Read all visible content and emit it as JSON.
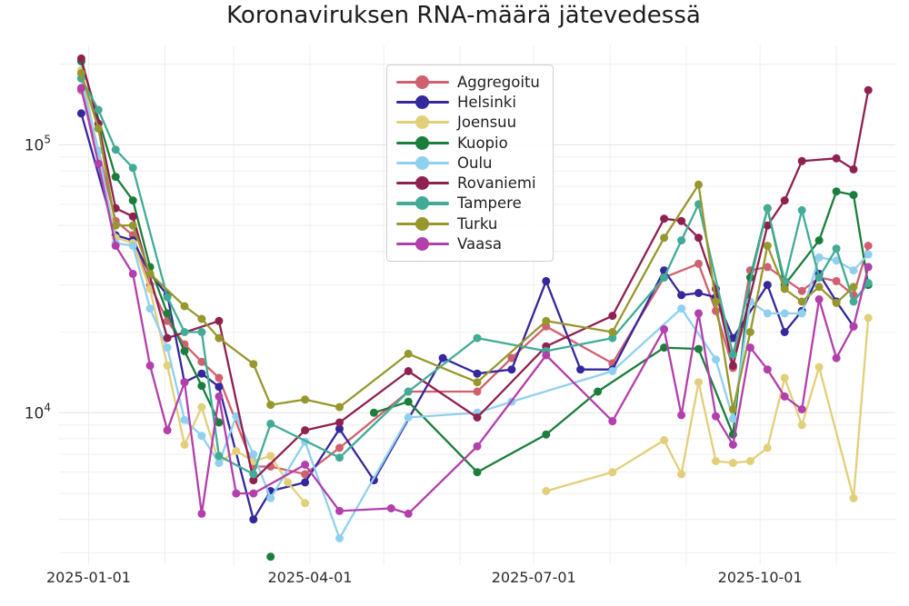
{
  "title": "Koronaviruksen RNA-määrä jätevedessä",
  "axes": {
    "x_ticks": [
      {
        "date": "2025-01-01",
        "label": "2025-01-01"
      },
      {
        "date": "2025-04-01",
        "label": "2025-04-01"
      },
      {
        "date": "2025-07-01",
        "label": "2025-07-01"
      },
      {
        "date": "2025-10-01",
        "label": "2025-10-01"
      }
    ],
    "y_ticks": [
      {
        "value": 10000,
        "base": "10",
        "exp": "4"
      },
      {
        "value": 100000,
        "base": "10",
        "exp": "5"
      }
    ],
    "x_range": [
      "2024-12-20",
      "2025-11-25"
    ],
    "y_range": [
      2700,
      235000
    ],
    "y_scale": "log",
    "grid_minor_color": "#f1eeef",
    "grid_major_color": "#e7e4e5",
    "tick_label_color": "#2b2b2b"
  },
  "legend": {
    "position": "upper-left-of-center"
  },
  "chart_data": {
    "type": "line",
    "title": "Koronaviruksen RNA-määrä jätevedessä",
    "xlabel": "",
    "ylabel": "",
    "y_scale": "log",
    "marker": "circle",
    "series": [
      {
        "name": "Aggregoitu",
        "color": "#d0606f",
        "points": [
          [
            "2024-12-29",
            160000
          ],
          [
            "2025-01-05",
            95000
          ],
          [
            "2025-01-12",
            52000
          ],
          [
            "2025-01-19",
            46000
          ],
          [
            "2025-01-26",
            30000
          ],
          [
            "2025-02-02",
            22000
          ],
          [
            "2025-02-09",
            18000
          ],
          [
            "2025-02-16",
            15500
          ],
          [
            "2025-02-23",
            13500
          ],
          [
            "2025-03-09",
            6300
          ],
          [
            "2025-03-16",
            6300
          ],
          [
            "2025-03-30",
            5900
          ],
          [
            "2025-04-13",
            7400
          ],
          [
            "2025-05-11",
            12000
          ],
          [
            "2025-06-08",
            12000
          ],
          [
            "2025-06-22",
            16000
          ],
          [
            "2025-07-06",
            21000
          ],
          [
            "2025-08-02",
            15300
          ],
          [
            "2025-08-23",
            32000
          ],
          [
            "2025-09-06",
            36000
          ],
          [
            "2025-09-13",
            24000
          ],
          [
            "2025-09-20",
            14700
          ],
          [
            "2025-09-27",
            34000
          ],
          [
            "2025-10-04",
            35000
          ],
          [
            "2025-10-18",
            28500
          ],
          [
            "2025-10-25",
            32000
          ],
          [
            "2025-11-01",
            31000
          ],
          [
            "2025-11-08",
            27500
          ],
          [
            "2025-11-14",
            42000
          ]
        ]
      },
      {
        "name": "Helsinki",
        "color": "#34289c",
        "points": [
          [
            "2024-12-29",
            131000
          ],
          [
            "2025-01-12",
            46000
          ],
          [
            "2025-01-19",
            44000
          ],
          [
            "2025-01-26",
            33000
          ],
          [
            "2025-02-02",
            27500
          ],
          [
            "2025-02-09",
            13000
          ],
          [
            "2025-02-16",
            14000
          ],
          [
            "2025-02-23",
            12500
          ],
          [
            "2025-03-09",
            4000
          ],
          [
            "2025-03-16",
            5100
          ],
          [
            "2025-03-30",
            5500
          ],
          [
            "2025-04-13",
            8700
          ],
          [
            "2025-04-27",
            5600
          ],
          [
            "2025-05-25",
            16000
          ],
          [
            "2025-06-08",
            14000
          ],
          [
            "2025-06-22",
            14500
          ],
          [
            "2025-07-06",
            31000
          ],
          [
            "2025-07-20",
            14500
          ],
          [
            "2025-08-02",
            14500
          ],
          [
            "2025-08-23",
            34000
          ],
          [
            "2025-08-30",
            27500
          ],
          [
            "2025-09-06",
            28000
          ],
          [
            "2025-09-13",
            27000
          ],
          [
            "2025-09-20",
            19000
          ],
          [
            "2025-10-04",
            30000
          ],
          [
            "2025-10-11",
            20000
          ],
          [
            "2025-10-18",
            24000
          ],
          [
            "2025-10-25",
            33000
          ],
          [
            "2025-11-01",
            26000
          ],
          [
            "2025-11-08",
            21000
          ]
        ]
      },
      {
        "name": "Joensuu",
        "color": "#e2cf7a",
        "points": [
          [
            "2024-12-29",
            190000
          ],
          [
            "2025-01-12",
            45000
          ],
          [
            "2025-01-19",
            43000
          ],
          [
            "2025-01-26",
            29000
          ],
          [
            "2025-02-02",
            15000
          ],
          [
            "2025-02-09",
            7600
          ],
          [
            "2025-02-16",
            10500
          ],
          [
            "2025-02-23",
            6500
          ],
          [
            "2025-03-02",
            7200
          ],
          [
            "2025-03-09",
            6600
          ],
          [
            "2025-03-16",
            6900
          ],
          [
            "2025-03-23",
            5500
          ],
          [
            "2025-03-30",
            4600
          ],
          [
            "2025-04-06",
            null
          ],
          [
            "2025-07-06",
            5100
          ],
          [
            "2025-08-02",
            6000
          ],
          [
            "2025-08-23",
            7900
          ],
          [
            "2025-08-30",
            5900
          ],
          [
            "2025-09-06",
            13000
          ],
          [
            "2025-09-13",
            6600
          ],
          [
            "2025-09-20",
            6500
          ],
          [
            "2025-09-27",
            6600
          ],
          [
            "2025-10-04",
            7400
          ],
          [
            "2025-10-11",
            13500
          ],
          [
            "2025-10-18",
            9000
          ],
          [
            "2025-10-25",
            14800
          ],
          [
            "2025-11-08",
            4800
          ],
          [
            "2025-11-14",
            22600
          ]
        ]
      },
      {
        "name": "Kuopio",
        "color": "#1b7e3c",
        "points": [
          [
            "2024-12-29",
            205000
          ],
          [
            "2025-01-12",
            76000
          ],
          [
            "2025-01-19",
            62000
          ],
          [
            "2025-01-26",
            35000
          ],
          [
            "2025-02-02",
            23500
          ],
          [
            "2025-02-09",
            17000
          ],
          [
            "2025-02-16",
            12600
          ],
          [
            "2025-02-23",
            9200
          ],
          [
            "2025-03-02",
            null
          ],
          [
            "2025-03-16",
            2900
          ],
          [
            "2025-03-23",
            null
          ],
          [
            "2025-04-27",
            10000
          ],
          [
            "2025-05-11",
            11000
          ],
          [
            "2025-06-08",
            6000
          ],
          [
            "2025-07-06",
            8300
          ],
          [
            "2025-07-27",
            12000
          ],
          [
            "2025-08-23",
            17500
          ],
          [
            "2025-09-06",
            17300
          ],
          [
            "2025-09-20",
            8300
          ],
          [
            "2025-09-27",
            32000
          ],
          [
            "2025-10-04",
            58000
          ],
          [
            "2025-10-11",
            30000
          ],
          [
            "2025-10-25",
            44000
          ],
          [
            "2025-11-01",
            67000
          ],
          [
            "2025-11-08",
            65000
          ],
          [
            "2025-11-14",
            30000
          ]
        ]
      },
      {
        "name": "Oulu",
        "color": "#8fd0f0",
        "points": [
          [
            "2024-12-29",
            177000
          ],
          [
            "2025-01-05",
            95000
          ],
          [
            "2025-01-12",
            43000
          ],
          [
            "2025-01-19",
            42000
          ],
          [
            "2025-01-26",
            24500
          ],
          [
            "2025-02-02",
            17500
          ],
          [
            "2025-02-09",
            9400
          ],
          [
            "2025-02-16",
            8200
          ],
          [
            "2025-02-23",
            6500
          ],
          [
            "2025-03-02",
            9700
          ],
          [
            "2025-03-09",
            7000
          ],
          [
            "2025-03-16",
            4800
          ],
          [
            "2025-03-30",
            7800
          ],
          [
            "2025-04-13",
            3400
          ],
          [
            "2025-05-11",
            9600
          ],
          [
            "2025-06-08",
            10000
          ],
          [
            "2025-06-22",
            11000
          ],
          [
            "2025-08-02",
            14300
          ],
          [
            "2025-08-30",
            24500
          ],
          [
            "2025-09-13",
            15800
          ],
          [
            "2025-09-20",
            9500
          ],
          [
            "2025-09-27",
            26000
          ],
          [
            "2025-10-04",
            23500
          ],
          [
            "2025-10-11",
            23500
          ],
          [
            "2025-10-18",
            23500
          ],
          [
            "2025-10-25",
            38000
          ],
          [
            "2025-11-01",
            37000
          ],
          [
            "2025-11-08",
            34000
          ],
          [
            "2025-11-14",
            39000
          ]
        ]
      },
      {
        "name": "Rovaniemi",
        "color": "#8e2150",
        "points": [
          [
            "2024-12-29",
            210000
          ],
          [
            "2025-01-05",
            120000
          ],
          [
            "2025-01-12",
            58000
          ],
          [
            "2025-01-19",
            54000
          ],
          [
            "2025-02-02",
            19000
          ],
          [
            "2025-02-23",
            22000
          ],
          [
            "2025-03-09",
            5600
          ],
          [
            "2025-03-30",
            8600
          ],
          [
            "2025-04-13",
            9200
          ],
          [
            "2025-05-11",
            14300
          ],
          [
            "2025-06-08",
            9600
          ],
          [
            "2025-07-06",
            17700
          ],
          [
            "2025-08-02",
            23000
          ],
          [
            "2025-08-23",
            53000
          ],
          [
            "2025-08-30",
            52000
          ],
          [
            "2025-09-06",
            45000
          ],
          [
            "2025-09-13",
            29000
          ],
          [
            "2025-09-20",
            15000
          ],
          [
            "2025-10-04",
            50000
          ],
          [
            "2025-10-11",
            62000
          ],
          [
            "2025-10-18",
            87000
          ],
          [
            "2025-11-01",
            89000
          ],
          [
            "2025-11-08",
            81000
          ],
          [
            "2025-11-14",
            160000
          ]
        ]
      },
      {
        "name": "Tampere",
        "color": "#42ab96",
        "points": [
          [
            "2024-12-29",
            177000
          ],
          [
            "2025-01-05",
            135000
          ],
          [
            "2025-01-12",
            96000
          ],
          [
            "2025-01-19",
            82000
          ],
          [
            "2025-02-02",
            27000
          ],
          [
            "2025-02-09",
            20000
          ],
          [
            "2025-02-16",
            20000
          ],
          [
            "2025-02-23",
            6900
          ],
          [
            "2025-03-09",
            5900
          ],
          [
            "2025-03-16",
            9100
          ],
          [
            "2025-04-13",
            6800
          ],
          [
            "2025-05-11",
            12000
          ],
          [
            "2025-06-08",
            19000
          ],
          [
            "2025-07-06",
            17000
          ],
          [
            "2025-08-02",
            19000
          ],
          [
            "2025-08-23",
            32000
          ],
          [
            "2025-08-30",
            44000
          ],
          [
            "2025-09-06",
            60000
          ],
          [
            "2025-09-20",
            16500
          ],
          [
            "2025-10-04",
            58000
          ],
          [
            "2025-10-11",
            31000
          ],
          [
            "2025-10-18",
            57000
          ],
          [
            "2025-10-25",
            32000
          ],
          [
            "2025-11-01",
            41000
          ],
          [
            "2025-11-08",
            26000
          ],
          [
            "2025-11-14",
            30500
          ]
        ]
      },
      {
        "name": "Turku",
        "color": "#97972e",
        "points": [
          [
            "2024-12-29",
            185000
          ],
          [
            "2025-01-05",
            115000
          ],
          [
            "2025-01-12",
            50000
          ],
          [
            "2025-01-19",
            50000
          ],
          [
            "2025-01-26",
            33000
          ],
          [
            "2025-02-09",
            25000
          ],
          [
            "2025-02-16",
            22400
          ],
          [
            "2025-02-23",
            19000
          ],
          [
            "2025-03-09",
            15200
          ],
          [
            "2025-03-16",
            10700
          ],
          [
            "2025-03-30",
            11200
          ],
          [
            "2025-04-13",
            10500
          ],
          [
            "2025-05-11",
            16600
          ],
          [
            "2025-06-08",
            13000
          ],
          [
            "2025-07-06",
            22000
          ],
          [
            "2025-08-02",
            20000
          ],
          [
            "2025-08-23",
            45000
          ],
          [
            "2025-09-06",
            71000
          ],
          [
            "2025-09-13",
            26000
          ],
          [
            "2025-09-20",
            10300
          ],
          [
            "2025-09-27",
            20000
          ],
          [
            "2025-10-04",
            42000
          ],
          [
            "2025-10-11",
            29000
          ],
          [
            "2025-10-18",
            26000
          ],
          [
            "2025-10-25",
            29500
          ],
          [
            "2025-11-01",
            25700
          ],
          [
            "2025-11-08",
            29500
          ]
        ]
      },
      {
        "name": "Vaasa",
        "color": "#b23fab",
        "points": [
          [
            "2024-12-29",
            163000
          ],
          [
            "2025-01-05",
            85000
          ],
          [
            "2025-01-12",
            42000
          ],
          [
            "2025-01-19",
            33000
          ],
          [
            "2025-01-26",
            15000
          ],
          [
            "2025-02-02",
            8600
          ],
          [
            "2025-02-09",
            13000
          ],
          [
            "2025-02-16",
            4200
          ],
          [
            "2025-02-23",
            11500
          ],
          [
            "2025-03-02",
            5000
          ],
          [
            "2025-03-09",
            5000
          ],
          [
            "2025-03-30",
            6400
          ],
          [
            "2025-04-13",
            4300
          ],
          [
            "2025-05-04",
            4400
          ],
          [
            "2025-05-11",
            4200
          ],
          [
            "2025-06-08",
            7500
          ],
          [
            "2025-07-06",
            16400
          ],
          [
            "2025-08-02",
            9300
          ],
          [
            "2025-08-23",
            20500
          ],
          [
            "2025-08-30",
            9800
          ],
          [
            "2025-09-06",
            23500
          ],
          [
            "2025-09-13",
            9700
          ],
          [
            "2025-09-20",
            7600
          ],
          [
            "2025-09-27",
            17500
          ],
          [
            "2025-10-04",
            14500
          ],
          [
            "2025-10-11",
            11500
          ],
          [
            "2025-10-18",
            10300
          ],
          [
            "2025-10-25",
            26500
          ],
          [
            "2025-11-01",
            16000
          ],
          [
            "2025-11-08",
            21000
          ],
          [
            "2025-11-14",
            35000
          ]
        ]
      }
    ]
  }
}
